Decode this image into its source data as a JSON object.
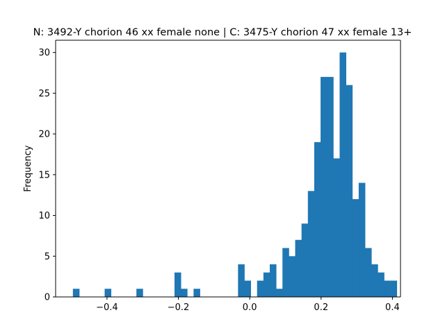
{
  "chart_data": {
    "type": "bar",
    "title": "N: 3492-Y chorion 46 xx female none | C: 3475-Y chorion 47 xx female 13+",
    "xlabel": "",
    "ylabel": "Frequency",
    "xlim": [
      -0.5,
      0.4
    ],
    "ylim": [
      0,
      31.5
    ],
    "x_ticks": [
      -0.4,
      -0.2,
      0.0,
      0.2,
      0.4
    ],
    "x_tick_labels": [
      "−0.4",
      "−0.2",
      "0.0",
      "0.2",
      "0.4"
    ],
    "y_ticks": [
      0,
      5,
      10,
      15,
      20,
      25,
      30
    ],
    "y_tick_labels": [
      "0",
      "5",
      "10",
      "15",
      "20",
      "25",
      "30"
    ],
    "bin_start": -0.4956,
    "bin_width": 0.0178,
    "values": [
      1,
      0,
      0,
      0,
      0,
      1,
      0,
      0,
      0,
      0,
      1,
      0,
      0,
      0,
      0,
      0,
      3,
      1,
      0,
      1,
      0,
      0,
      0,
      0,
      0,
      0,
      4,
      2,
      0,
      2,
      3,
      4,
      1,
      6,
      5,
      7,
      9,
      13,
      19,
      27,
      27,
      17,
      30,
      26,
      12,
      14,
      6,
      4,
      3,
      2,
      2
    ],
    "bar_color": "#1f77b4",
    "grid": false,
    "legend": "none"
  }
}
